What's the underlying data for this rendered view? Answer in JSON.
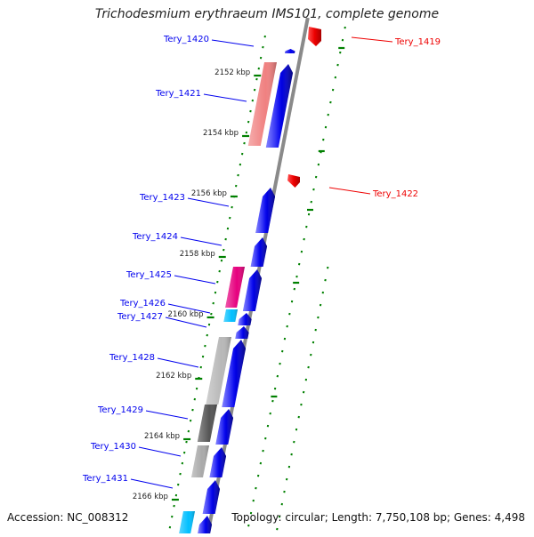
{
  "title": "Trichodesmium erythraeum IMS101, complete genome",
  "accession": "Accession: NC_008312",
  "summary": "Topology: circular; Length: 7,750,108 bp; Genes: 4,498",
  "colors": {
    "forward": "#0000ee",
    "reverse": "#ee0000",
    "tick": "#008000",
    "backbone": "#8a8a8a"
  },
  "kbp_ticks": [
    "2152 kbp",
    "2154 kbp",
    "2156 kbp",
    "2158 kbp",
    "2160 kbp",
    "2162 kbp",
    "2164 kbp",
    "2166 kbp"
  ],
  "genes_reverse": [
    {
      "id": "Tery_1419"
    },
    {
      "id": "Tery_1422"
    }
  ],
  "genes_forward": [
    {
      "id": "Tery_1420"
    },
    {
      "id": "Tery_1421",
      "cog_color": "#f08080"
    },
    {
      "id": "Tery_1423"
    },
    {
      "id": "Tery_1424"
    },
    {
      "id": "Tery_1425",
      "cog_color": "#e6007e"
    },
    {
      "id": "Tery_1426",
      "cog_color": "#00bfff"
    },
    {
      "id": "Tery_1427"
    },
    {
      "id": "Tery_1428",
      "cog_color": "#b8b8b8"
    },
    {
      "id": "Tery_1429",
      "cog_color": "#555555"
    },
    {
      "id": "Tery_1430",
      "cog_color": "#a9a9a9"
    },
    {
      "id": "Tery_1431",
      "cog_color": "#00bfff"
    }
  ]
}
